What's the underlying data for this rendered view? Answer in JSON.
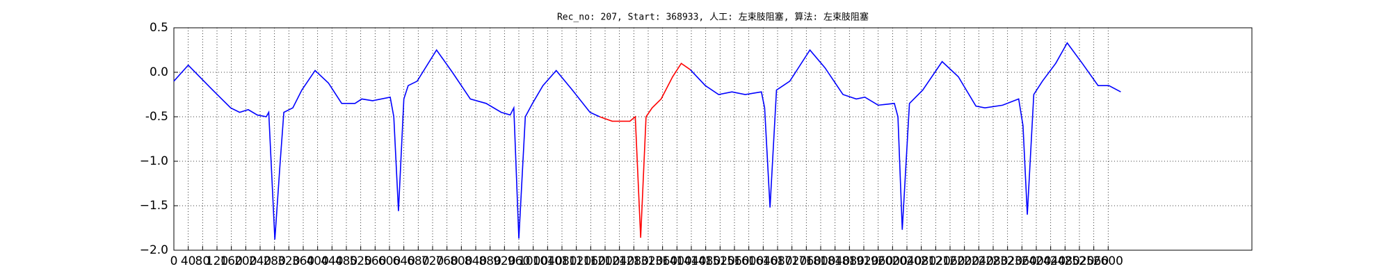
{
  "chart_data": {
    "type": "line",
    "title": "Rec_no: 207, Start: 368933, 人工: 左束肢阻塞, 算法: 左束肢阻塞",
    "xlim": [
      0,
      3000
    ],
    "ylim": [
      -2.0,
      0.5
    ],
    "xticks": [
      0,
      40,
      80,
      120,
      160,
      200,
      240,
      280,
      320,
      360,
      400,
      440,
      480,
      520,
      560,
      600,
      640,
      680,
      720,
      760,
      800,
      840,
      880,
      920,
      960,
      1000,
      1040,
      1080,
      1120,
      1160,
      1200,
      1240,
      1280,
      1320,
      1360,
      1400,
      1440,
      1480,
      1520,
      1560,
      1600,
      1640,
      1680,
      1720,
      1760,
      1800,
      1840,
      1880,
      1920,
      1960,
      2000,
      2040,
      2080,
      2120,
      2160,
      2200,
      2240,
      2280,
      2320,
      2360,
      2400,
      2440,
      2480,
      2520,
      2560,
      2600
    ],
    "yticks": [
      0.5,
      {
        "value": 0,
        "label": "0.0"
      },
      -0.5,
      {
        "value": -1,
        "label": "−1.0"
      },
      {
        "value": -1.5,
        "label": "−1.5"
      },
      {
        "value": -2,
        "label": "−2.0"
      }
    ],
    "grid": true,
    "series": [
      {
        "color": "#0000ff",
        "x": [
          0,
          40,
          108,
          158,
          183,
          207,
          232,
          257,
          264,
          281,
          296,
          306,
          331,
          356,
          393,
          430,
          467,
          504,
          523,
          553,
          602,
          612,
          625,
          640,
          652,
          677,
          731,
          775,
          825,
          869,
          911,
          936,
          946,
          960,
          978,
          998,
          1027,
          1064,
          1109,
          1158,
          1185,
          1300,
          1437,
          1479,
          1516,
          1553,
          1590,
          1635,
          1644,
          1659,
          1677,
          1714,
          1770,
          1812,
          1862,
          1899,
          1923,
          1960,
          2005,
          2015,
          2027,
          2047,
          2084,
          2138,
          2183,
          2232,
          2257,
          2306,
          2351,
          2363,
          2375,
          2393,
          2417,
          2454,
          2486,
          2528,
          2572,
          2602,
          2635
        ],
        "values": [
          -0.1,
          0.08,
          -0.2,
          -0.4,
          -0.45,
          -0.42,
          -0.48,
          -0.5,
          -0.45,
          -1.88,
          -1.0,
          -0.45,
          -0.4,
          -0.2,
          0.02,
          -0.12,
          -0.35,
          -0.35,
          -0.3,
          -0.32,
          -0.28,
          -0.5,
          -1.56,
          -0.3,
          -0.15,
          -0.1,
          0.25,
          0.0,
          -0.3,
          -0.35,
          -0.45,
          -0.48,
          -0.4,
          -1.87,
          -0.5,
          -0.35,
          -0.15,
          0.02,
          -0.2,
          -0.45,
          -0.5,
          null,
          0.03,
          -0.15,
          -0.25,
          -0.22,
          -0.25,
          -0.22,
          -0.4,
          -1.52,
          -0.2,
          -0.1,
          0.25,
          0.05,
          -0.25,
          -0.3,
          -0.28,
          -0.37,
          -0.35,
          -0.5,
          -1.77,
          -0.35,
          -0.2,
          0.12,
          -0.05,
          -0.38,
          -0.4,
          -0.37,
          -0.3,
          -0.6,
          -1.6,
          -0.25,
          -0.1,
          0.1,
          0.33,
          0.1,
          -0.15,
          -0.15,
          -0.22
        ]
      },
      {
        "color": "#ff0000",
        "x": [
          1185,
          1220,
          1269,
          1284,
          1299,
          1314,
          1331,
          1356,
          1388,
          1412,
          1437
        ],
        "values": [
          -0.5,
          -0.55,
          -0.55,
          -0.5,
          -1.86,
          -0.5,
          -0.4,
          -0.3,
          -0.05,
          0.1,
          0.03
        ]
      }
    ]
  }
}
